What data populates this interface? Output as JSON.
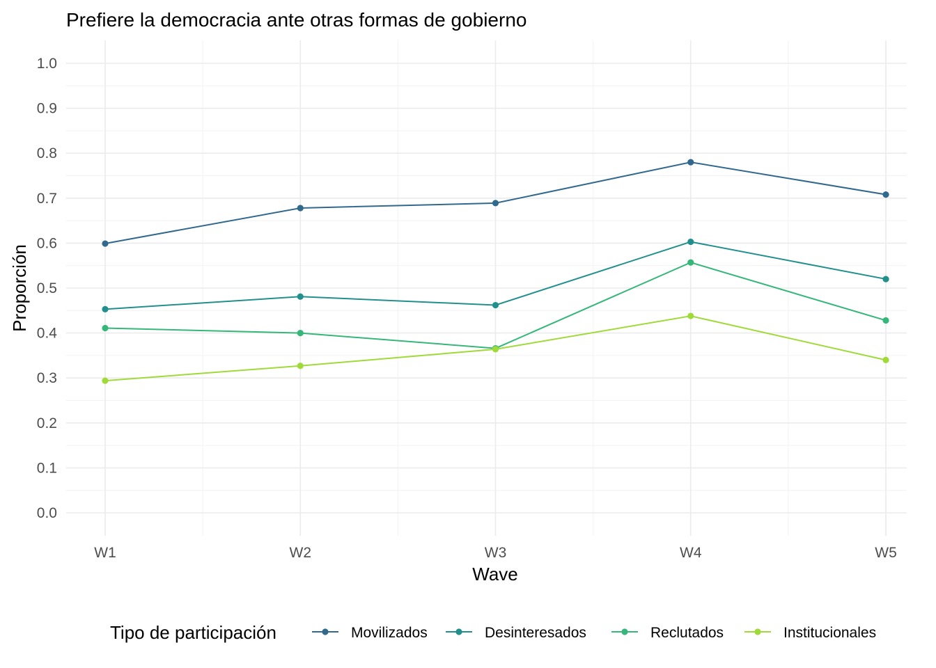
{
  "chart_data": {
    "type": "line",
    "title": "Prefiere la democracia ante otras formas de gobierno",
    "xlabel": "Wave",
    "ylabel": "Proporción",
    "categories": [
      "W1",
      "W2",
      "W3",
      "W4",
      "W5"
    ],
    "ylim": [
      0,
      1.0
    ],
    "yticks": [
      "0.0",
      "0.1",
      "0.2",
      "0.3",
      "0.4",
      "0.5",
      "0.6",
      "0.7",
      "0.8",
      "0.9",
      "1.0"
    ],
    "grid": true,
    "legend": {
      "title": "Tipo de participación",
      "position": "bottom"
    },
    "series": [
      {
        "name": "Movilizados",
        "color": "#31688e",
        "values": [
          0.599,
          0.678,
          0.689,
          0.78,
          0.708
        ]
      },
      {
        "name": "Desinteresados",
        "color": "#21908d",
        "values": [
          0.453,
          0.481,
          0.462,
          0.603,
          0.52
        ]
      },
      {
        "name": "Reclutados",
        "color": "#35b779",
        "values": [
          0.411,
          0.4,
          0.366,
          0.557,
          0.428
        ]
      },
      {
        "name": "Institucionales",
        "color": "#a0da39",
        "values": [
          0.294,
          0.327,
          0.364,
          0.438,
          0.34
        ]
      }
    ]
  }
}
